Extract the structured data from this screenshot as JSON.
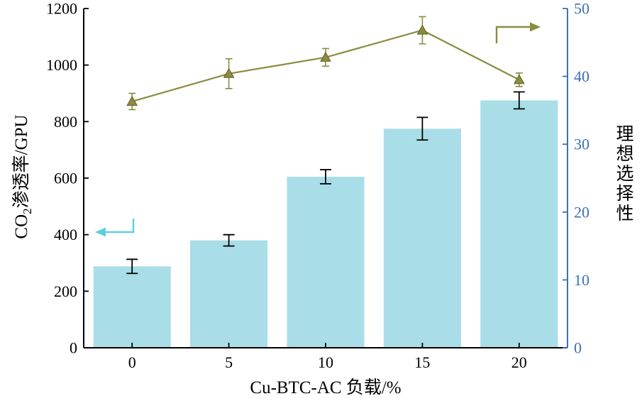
{
  "figure": {
    "background": "#ffffff",
    "x_axis": {
      "label": "Cu-BTC-AC 负载/%",
      "tick_labels": [
        "0",
        "5",
        "10",
        "15",
        "20"
      ],
      "color": "#000000"
    },
    "left_axis": {
      "label_prefix": "CO",
      "label_sub": "2",
      "label_suffix": "渗透率/GPU",
      "min": 0,
      "max": 1200,
      "tick_step": 200,
      "color": "#000000"
    },
    "right_axis": {
      "label": "理想选择性",
      "min": 0,
      "max": 50,
      "tick_step": 10,
      "color": "#3a70b8"
    }
  },
  "chart_data": {
    "type": "bar",
    "categories": [
      0,
      5,
      10,
      15,
      20
    ],
    "xlabel": "Cu-BTC-AC 负载/%",
    "ylabel_left": "CO2渗透率/GPU",
    "ylabel_right": "理想选择性",
    "ylim_left": [
      0,
      1200
    ],
    "ylim_right": [
      0,
      50
    ],
    "grid": false,
    "legend": "none",
    "series": [
      {
        "name": "CO2渗透率/GPU",
        "type": "bar",
        "axis": "left",
        "color": "#a9dee8",
        "error_color": "#000000",
        "values": [
          288,
          380,
          605,
          775,
          875
        ],
        "errors": [
          25,
          20,
          25,
          40,
          30
        ]
      },
      {
        "name": "理想选择性",
        "type": "line",
        "axis": "right",
        "color": "#8b8b40",
        "marker": "triangle-up",
        "marker_edge": "#5f5f28",
        "values": [
          36.3,
          40.4,
          42.8,
          46.8,
          39.5
        ],
        "errors": [
          1.2,
          2.2,
          1.3,
          2.0,
          1.0
        ]
      }
    ],
    "annotations": [
      {
        "type": "arrow",
        "direction": "left",
        "color": "#5ecede",
        "meaning": "bars-read-left-axis"
      },
      {
        "type": "arrow",
        "direction": "right",
        "color": "#8b8b40",
        "meaning": "line-reads-right-axis"
      }
    ]
  }
}
